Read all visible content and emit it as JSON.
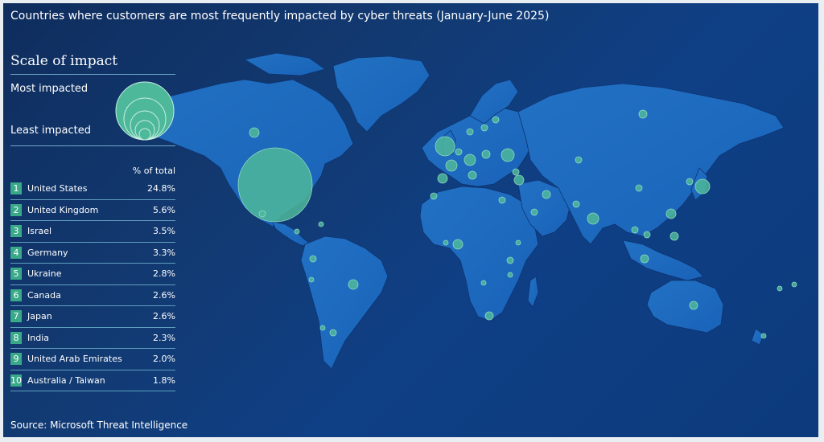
{
  "title": "Countries where customers are most frequently impacted by cyber threats  (January-June 2025)",
  "scale": {
    "heading": "Scale of impact",
    "most_label": "Most impacted",
    "least_label": "Least impacted"
  },
  "table": {
    "column_header": "% of total",
    "rows": [
      {
        "rank": "1",
        "country": "United States",
        "pct": "24.8%"
      },
      {
        "rank": "2",
        "country": "United Kingdom",
        "pct": "5.6%"
      },
      {
        "rank": "3",
        "country": "Israel",
        "pct": "3.5%"
      },
      {
        "rank": "4",
        "country": "Germany",
        "pct": "3.3%"
      },
      {
        "rank": "5",
        "country": "Ukraine",
        "pct": "2.8%"
      },
      {
        "rank": "6",
        "country": "Canada",
        "pct": "2.6%"
      },
      {
        "rank": "7",
        "country": "Japan",
        "pct": "2.6%"
      },
      {
        "rank": "8",
        "country": "India",
        "pct": "2.3%"
      },
      {
        "rank": "9",
        "country": "United Arab Emirates",
        "pct": "2.0%"
      },
      {
        "rank": "10",
        "country": "Australia / Taiwan",
        "pct": "1.8%"
      }
    ]
  },
  "source": "Source: Microsoft Threat Intelligence",
  "colors": {
    "background": "#0f3a78",
    "land": "#1e6fc4",
    "bubble": "#4db89a",
    "rank_badge": "#3aa98a",
    "rule": "#6fa9c8"
  }
}
